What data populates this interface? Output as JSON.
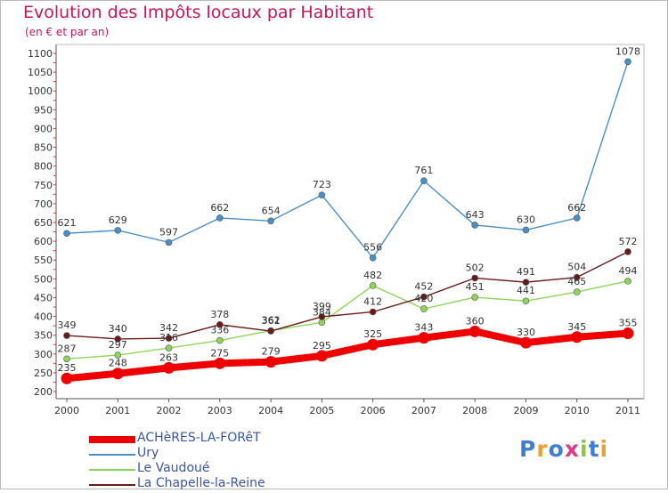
{
  "chart_data": {
    "type": "line",
    "title": "Evolution des Impôts locaux par Habitant",
    "subtitle": "(en € et par an)",
    "x": [
      "2000",
      "2001",
      "2002",
      "2003",
      "2004",
      "2005",
      "2006",
      "2007",
      "2008",
      "2009",
      "2010",
      "2011"
    ],
    "ylim": [
      200,
      1100
    ],
    "yticks": [
      200,
      250,
      300,
      350,
      400,
      450,
      500,
      550,
      600,
      650,
      700,
      750,
      800,
      850,
      900,
      950,
      1000,
      1050,
      1100
    ],
    "grid": false,
    "legend_position": "bottom-left",
    "series": [
      {
        "name": "ACHèRES-LA-FORêT",
        "color": "#ee0000",
        "values": [
          235,
          248,
          263,
          275,
          279,
          295,
          325,
          343,
          360,
          330,
          345,
          355
        ]
      },
      {
        "name": "Ury",
        "color": "#4a90c8",
        "values": [
          621,
          629,
          597,
          662,
          654,
          723,
          556,
          761,
          643,
          630,
          662,
          1078
        ]
      },
      {
        "name": "Le Vaudoué",
        "color": "#8ed65a",
        "values": [
          287,
          297,
          316,
          336,
          362,
          384,
          482,
          420,
          451,
          441,
          465,
          494
        ]
      },
      {
        "name": "La Chapelle-la-Reine",
        "color": "#6a1a1a",
        "values": [
          349,
          340,
          342,
          378,
          361,
          399,
          412,
          452,
          502,
          491,
          504,
          572
        ]
      }
    ]
  },
  "logo": {
    "letters": [
      {
        "ch": "P",
        "color": "#3d7fd6"
      },
      {
        "ch": "r",
        "color": "#f0a030"
      },
      {
        "ch": "o",
        "color": "#3d7fd6"
      },
      {
        "ch": "x",
        "color": "#e03a8a"
      },
      {
        "ch": "i",
        "color": "#8ac640"
      },
      {
        "ch": "t",
        "color": "#3d7fd6"
      },
      {
        "ch": "i",
        "color": "#f0a030"
      }
    ]
  }
}
